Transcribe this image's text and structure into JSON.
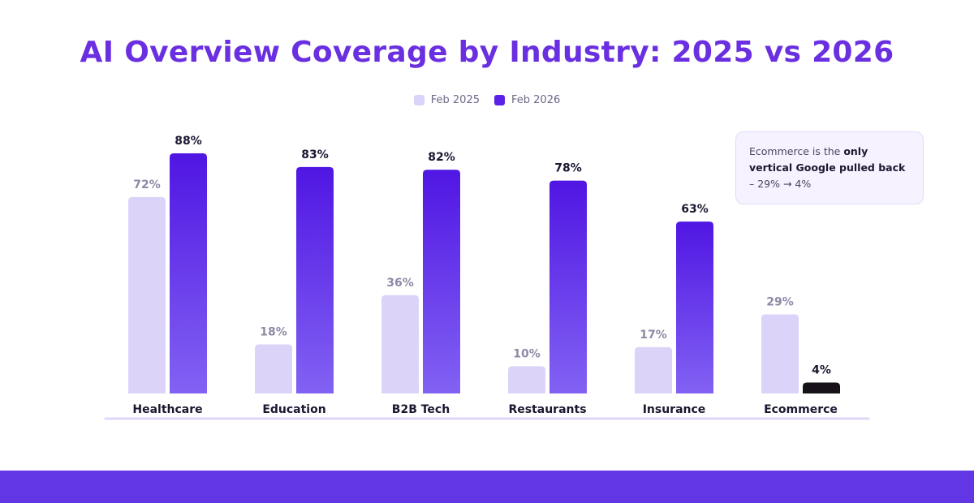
{
  "colors": {
    "title": "#6a2fe0",
    "feb2025": "#dcd3f9",
    "feb2026_top": "#5016e3",
    "feb2026_bottom": "#8262f3",
    "highlight": "#17111a",
    "label_2025": "#8f88a6",
    "label_2026": "#1b1730",
    "baseline": "#e2d6f8",
    "band": "#6236e4"
  },
  "chart_data": {
    "type": "bar",
    "title": "AI Overview Coverage by Industry: 2025 vs 2026",
    "categories": [
      "Healthcare",
      "Education",
      "B2B Tech",
      "Restaurants",
      "Insurance",
      "Ecommerce"
    ],
    "series": [
      {
        "name": "Feb 2025",
        "values": [
          72,
          18,
          36,
          10,
          17,
          29
        ]
      },
      {
        "name": "Feb 2026",
        "values": [
          88,
          83,
          82,
          78,
          63,
          4
        ]
      }
    ],
    "value_suffix": "%",
    "ylim": [
      0,
      100
    ],
    "grid": false,
    "legend_position": "top-center",
    "highlight": {
      "category": "Ecommerce",
      "series": "Feb 2026"
    }
  },
  "callout": {
    "prefix": "Ecommerce is the ",
    "bold": "only vertical Google pulled back",
    "suffix": " – 29% → 4%"
  }
}
